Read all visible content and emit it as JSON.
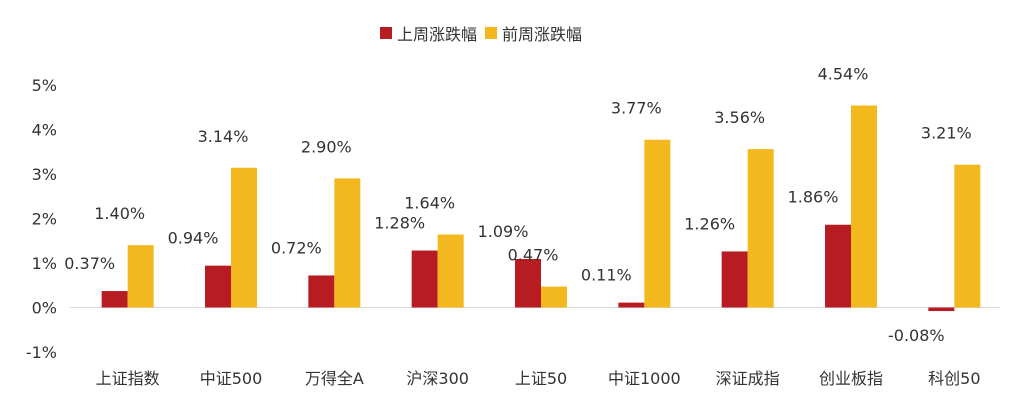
{
  "chart_data": {
    "type": "bar",
    "categories": [
      "上证指数",
      "中证500",
      "万得全A",
      "沪深300",
      "上证50",
      "中证1000",
      "深证成指",
      "创业板指",
      "科创50"
    ],
    "series": [
      {
        "name": "上周涨跌幅",
        "color": "#B71C23",
        "values": [
          0.37,
          0.94,
          0.72,
          1.28,
          1.09,
          0.11,
          1.26,
          1.86,
          -0.08
        ],
        "labels": [
          "0.37%",
          "0.94%",
          "0.72%",
          "1.28%",
          "1.09%",
          "0.11%",
          "1.26%",
          "1.86%",
          "-0.08%"
        ]
      },
      {
        "name": "前周涨跌幅",
        "color": "#F2B81E",
        "values": [
          1.4,
          3.14,
          2.9,
          1.64,
          0.47,
          3.77,
          3.56,
          4.54,
          3.21
        ],
        "labels": [
          "1.40%",
          "3.14%",
          "2.90%",
          "1.64%",
          "0.47%",
          "3.77%",
          "3.56%",
          "4.54%",
          "3.21%"
        ]
      }
    ],
    "yticks": [
      -1,
      0,
      1,
      2,
      3,
      4,
      5
    ],
    "ytick_labels": [
      "-1%",
      "0%",
      "1%",
      "2%",
      "3%",
      "4%",
      "5%"
    ],
    "ylim": [
      -1,
      5
    ],
    "legend_position": "top-center",
    "grid": false
  }
}
